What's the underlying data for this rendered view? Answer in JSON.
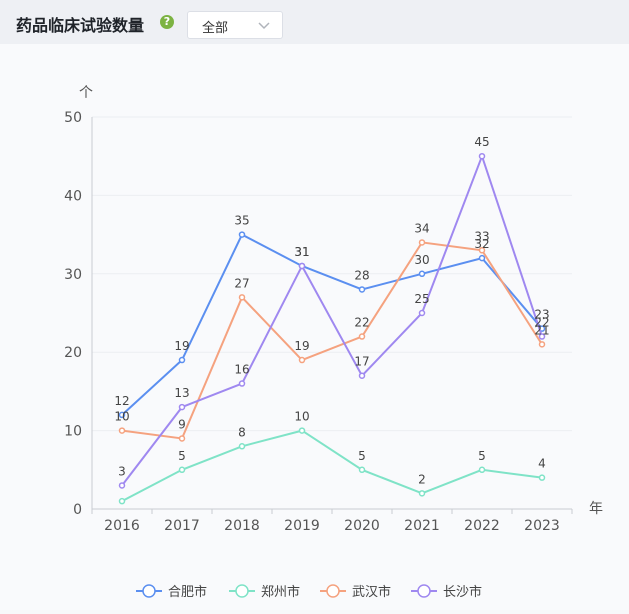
{
  "header": {
    "title": "药品临床试验数量",
    "help_icon": "question-circle-icon",
    "dropdown_value": "全部"
  },
  "colors": {
    "合肥市": "#5b8ff0",
    "郑州市": "#7fe3c7",
    "武汉市": "#f5a27f",
    "长沙市": "#9f88f0"
  },
  "chart_data": {
    "type": "line",
    "x": [
      "2016",
      "2017",
      "2018",
      "2019",
      "2020",
      "2021",
      "2022",
      "2023"
    ],
    "ylabel": "个",
    "xlabel": "年",
    "ylim": [
      0,
      50
    ],
    "yticks": [
      "0",
      "10",
      "20",
      "30",
      "40",
      "50"
    ],
    "grid": true,
    "legend": "bottom",
    "series": [
      {
        "name": "合肥市",
        "values": [
          12,
          19,
          35,
          31,
          28,
          30,
          32,
          23
        ]
      },
      {
        "name": "郑州市",
        "values": [
          1,
          5,
          8,
          10,
          5,
          2,
          5,
          4
        ]
      },
      {
        "name": "武汉市",
        "values": [
          10,
          9,
          27,
          19,
          22,
          34,
          33,
          21
        ]
      },
      {
        "name": "长沙市",
        "values": [
          3,
          13,
          16,
          31,
          17,
          25,
          45,
          22
        ]
      }
    ],
    "data_labels": [
      {
        "series": 0,
        "i": 0,
        "text": "12"
      },
      {
        "series": 0,
        "i": 1,
        "text": "19"
      },
      {
        "series": 0,
        "i": 2,
        "text": "35"
      },
      {
        "series": 0,
        "i": 3,
        "text": "31"
      },
      {
        "series": 0,
        "i": 4,
        "text": "28"
      },
      {
        "series": 0,
        "i": 5,
        "text": "30"
      },
      {
        "series": 0,
        "i": 6,
        "text": "32"
      },
      {
        "series": 0,
        "i": 7,
        "text": "23"
      },
      {
        "series": 1,
        "i": 1,
        "text": "5"
      },
      {
        "series": 1,
        "i": 2,
        "text": "8"
      },
      {
        "series": 1,
        "i": 3,
        "text": "10"
      },
      {
        "series": 1,
        "i": 4,
        "text": "5"
      },
      {
        "series": 1,
        "i": 5,
        "text": "2"
      },
      {
        "series": 1,
        "i": 6,
        "text": "5"
      },
      {
        "series": 1,
        "i": 7,
        "text": "4"
      },
      {
        "series": 2,
        "i": 0,
        "text": "10"
      },
      {
        "series": 2,
        "i": 1,
        "text": "9"
      },
      {
        "series": 2,
        "i": 2,
        "text": "27"
      },
      {
        "series": 2,
        "i": 3,
        "text": "19"
      },
      {
        "series": 2,
        "i": 4,
        "text": "22"
      },
      {
        "series": 2,
        "i": 5,
        "text": "34"
      },
      {
        "series": 2,
        "i": 6,
        "text": "33"
      },
      {
        "series": 2,
        "i": 7,
        "text": "21"
      },
      {
        "series": 3,
        "i": 0,
        "text": "3"
      },
      {
        "series": 3,
        "i": 1,
        "text": "13"
      },
      {
        "series": 3,
        "i": 2,
        "text": "16"
      },
      {
        "series": 3,
        "i": 3,
        "text": "31"
      },
      {
        "series": 3,
        "i": 4,
        "text": "17"
      },
      {
        "series": 3,
        "i": 5,
        "text": "25"
      },
      {
        "series": 3,
        "i": 6,
        "text": "45"
      },
      {
        "series": 3,
        "i": 7,
        "text": "22"
      }
    ]
  }
}
